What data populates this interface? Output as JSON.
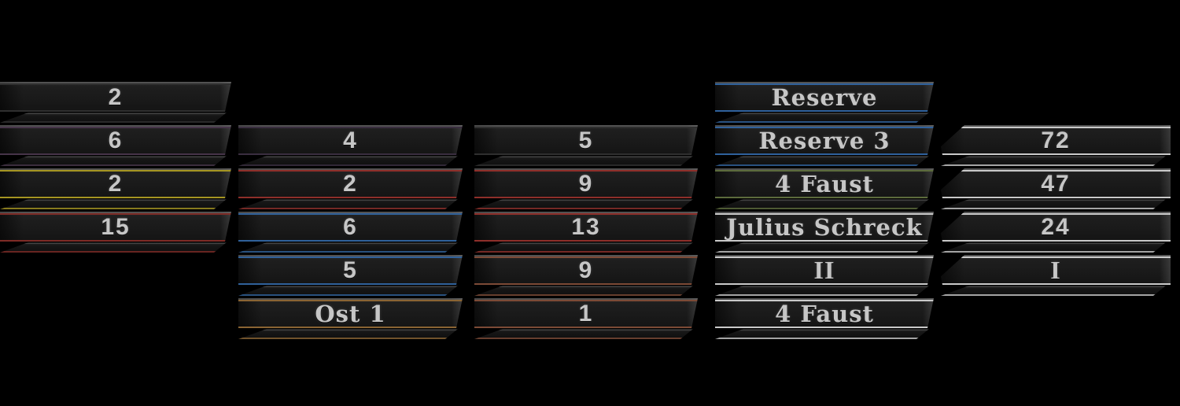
{
  "scene": {
    "name": "cuff-title-collection",
    "background_color": "#000000",
    "band_face_color": "#1b1b1b",
    "label_color": "#c6c6c6"
  },
  "columns": [
    {
      "name": "stack-1",
      "bands": [
        {
          "label": "2",
          "style": "number",
          "piping_name": "black",
          "piping_color": "#2f2f2f"
        },
        {
          "label": "6",
          "style": "number",
          "piping_name": "purple",
          "piping_color": "#463449"
        },
        {
          "label": "2",
          "style": "number",
          "piping_name": "yellow",
          "piping_color": "#a59522"
        },
        {
          "label": "15",
          "style": "number",
          "piping_name": "red",
          "piping_color": "#7e2b26"
        }
      ]
    },
    {
      "name": "stack-2",
      "bands": [
        {
          "label": "4",
          "style": "number",
          "piping_name": "dark-purple",
          "piping_color": "#3a2e40"
        },
        {
          "label": "2",
          "style": "number",
          "piping_name": "red",
          "piping_color": "#8e2f2a"
        },
        {
          "label": "6",
          "style": "number",
          "piping_name": "blue",
          "piping_color": "#30619a"
        },
        {
          "label": "5",
          "style": "number",
          "piping_name": "blue",
          "piping_color": "#30619a"
        },
        {
          "label": "Ost 1",
          "style": "fraktur",
          "piping_name": "tan",
          "piping_color": "#8a6433"
        }
      ]
    },
    {
      "name": "stack-3",
      "bands": [
        {
          "label": "5",
          "style": "number",
          "piping_name": "black",
          "piping_color": "#2f2f2f"
        },
        {
          "label": "9",
          "style": "number",
          "piping_name": "red",
          "piping_color": "#8e2f2a"
        },
        {
          "label": "13",
          "style": "number",
          "piping_name": "red",
          "piping_color": "#8e2f2a"
        },
        {
          "label": "9",
          "style": "number",
          "piping_name": "copper",
          "piping_color": "#7c4a36"
        },
        {
          "label": "1",
          "style": "number",
          "piping_name": "copper",
          "piping_color": "#7c4a36"
        }
      ]
    },
    {
      "name": "stack-4",
      "bands": [
        {
          "label": "Reserve",
          "style": "fraktur",
          "piping_name": "blue",
          "piping_color": "#2f619c"
        },
        {
          "label": "Reserve 3",
          "style": "fraktur",
          "piping_name": "blue",
          "piping_color": "#2f619c"
        },
        {
          "label": "4 Faust",
          "style": "fraktur",
          "piping_name": "green",
          "piping_color": "#5c6b3c"
        },
        {
          "label": "Julius Schreck",
          "style": "fraktur",
          "piping_name": "silver",
          "piping_color": "#c9c9c9"
        },
        {
          "label": "II",
          "style": "roman",
          "piping_name": "silver",
          "piping_color": "#c9c9c9"
        },
        {
          "label": "4 Faust",
          "style": "fraktur",
          "piping_name": "silver",
          "piping_color": "#c9c9c9"
        }
      ]
    },
    {
      "name": "stack-5",
      "bands": [
        {
          "label": "72",
          "style": "number",
          "piping_name": "silver",
          "piping_color": "#c9c9c9"
        },
        {
          "label": "47",
          "style": "number",
          "piping_name": "silver",
          "piping_color": "#c9c9c9"
        },
        {
          "label": "24",
          "style": "number",
          "piping_name": "silver",
          "piping_color": "#c9c9c9"
        },
        {
          "label": "I",
          "style": "roman",
          "piping_name": "silver",
          "piping_color": "#c9c9c9"
        }
      ]
    }
  ]
}
